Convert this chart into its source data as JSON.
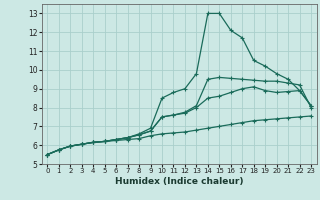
{
  "xlabel": "Humidex (Indice chaleur)",
  "bg_color": "#cce8e4",
  "grid_color": "#aacfcc",
  "line_color": "#1a6b5a",
  "xlim": [
    -0.5,
    23.5
  ],
  "ylim": [
    5.0,
    13.5
  ],
  "xticks": [
    0,
    1,
    2,
    3,
    4,
    5,
    6,
    7,
    8,
    9,
    10,
    11,
    12,
    13,
    14,
    15,
    16,
    17,
    18,
    19,
    20,
    21,
    22,
    23
  ],
  "yticks": [
    5,
    6,
    7,
    8,
    9,
    10,
    11,
    12,
    13
  ],
  "series": [
    [
      5.5,
      5.75,
      5.95,
      6.05,
      6.15,
      6.2,
      6.25,
      6.3,
      6.35,
      6.5,
      6.6,
      6.65,
      6.7,
      6.8,
      6.9,
      7.0,
      7.1,
      7.2,
      7.3,
      7.35,
      7.4,
      7.45,
      7.5,
      7.55
    ],
    [
      5.5,
      5.75,
      5.95,
      6.05,
      6.15,
      6.2,
      6.3,
      6.4,
      6.55,
      6.75,
      7.5,
      7.6,
      7.7,
      8.0,
      8.5,
      8.6,
      8.8,
      9.0,
      9.1,
      8.9,
      8.8,
      8.85,
      8.9,
      8.1
    ],
    [
      5.5,
      5.75,
      5.95,
      6.05,
      6.15,
      6.2,
      6.3,
      6.4,
      6.55,
      6.75,
      7.5,
      7.6,
      7.75,
      8.1,
      9.5,
      9.6,
      9.55,
      9.5,
      9.45,
      9.4,
      9.4,
      9.3,
      9.2,
      8.0
    ],
    [
      5.5,
      5.75,
      5.95,
      6.05,
      6.15,
      6.2,
      6.3,
      6.4,
      6.6,
      6.9,
      8.5,
      8.8,
      9.0,
      9.8,
      13.0,
      13.0,
      12.1,
      11.7,
      10.5,
      10.2,
      9.8,
      9.5,
      8.9,
      8.1
    ]
  ]
}
